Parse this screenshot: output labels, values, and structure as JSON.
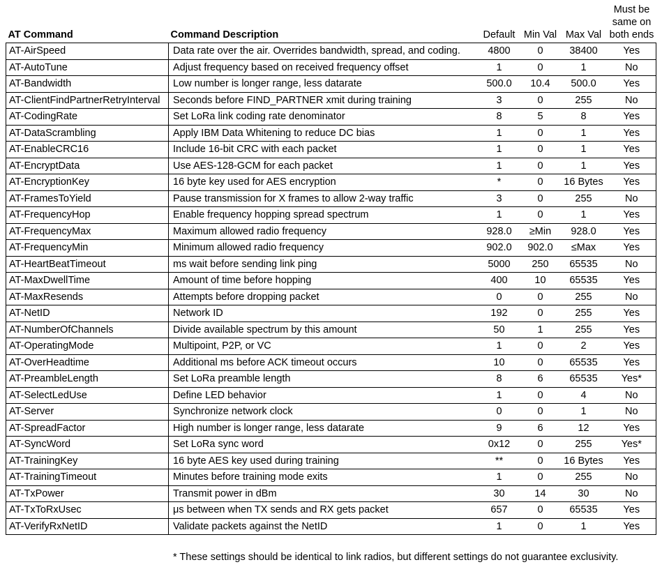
{
  "headers": {
    "command": "AT Command",
    "description": "Command Description",
    "default": "Default",
    "min": "Min Val",
    "max": "Max Val",
    "same_line1": "Must be",
    "same_line2": "same on",
    "same_line3": "both ends"
  },
  "rows": [
    {
      "cmd": "AT-AirSpeed",
      "desc": "Data rate over the air. Overrides bandwidth, spread, and coding.",
      "def": "4800",
      "min": "0",
      "max": "38400",
      "same": "Yes"
    },
    {
      "cmd": "AT-AutoTune",
      "desc": "Adjust frequency based on received frequency offset",
      "def": "1",
      "min": "0",
      "max": "1",
      "same": "No"
    },
    {
      "cmd": "AT-Bandwidth",
      "desc": "Low number is longer range, less datarate",
      "def": "500.0",
      "min": "10.4",
      "max": "500.0",
      "same": "Yes"
    },
    {
      "cmd": "AT-ClientFindPartnerRetryInterval",
      "desc": "Seconds before FIND_PARTNER xmit during training",
      "def": "3",
      "min": "0",
      "max": "255",
      "same": "No"
    },
    {
      "cmd": "AT-CodingRate",
      "desc": "Set LoRa link coding rate denominator",
      "def": "8",
      "min": "5",
      "max": "8",
      "same": "Yes"
    },
    {
      "cmd": "AT-DataScrambling",
      "desc": "Apply IBM Data Whitening to reduce DC bias",
      "def": "1",
      "min": "0",
      "max": "1",
      "same": "Yes"
    },
    {
      "cmd": "AT-EnableCRC16",
      "desc": "Include 16-bit CRC with each packet",
      "def": "1",
      "min": "0",
      "max": "1",
      "same": "Yes"
    },
    {
      "cmd": "AT-EncryptData",
      "desc": "Use AES-128-GCM for each packet",
      "def": "1",
      "min": "0",
      "max": "1",
      "same": "Yes"
    },
    {
      "cmd": "AT-EncryptionKey",
      "desc": "16 byte key used for AES encryption",
      "def": "*",
      "min": "0",
      "max": "16 Bytes",
      "same": "Yes"
    },
    {
      "cmd": "AT-FramesToYield",
      "desc": "Pause transmission for X frames to allow 2-way traffic",
      "def": "3",
      "min": "0",
      "max": "255",
      "same": "No"
    },
    {
      "cmd": "AT-FrequencyHop",
      "desc": "Enable frequency hopping spread spectrum",
      "def": "1",
      "min": "0",
      "max": "1",
      "same": "Yes"
    },
    {
      "cmd": "AT-FrequencyMax",
      "desc": "Maximum allowed radio frequency",
      "def": "928.0",
      "min": "≥Min",
      "max": "928.0",
      "same": "Yes"
    },
    {
      "cmd": "AT-FrequencyMin",
      "desc": "Minimum allowed radio frequency",
      "def": "902.0",
      "min": "902.0",
      "max": "≤Max",
      "same": "Yes"
    },
    {
      "cmd": "AT-HeartBeatTimeout",
      "desc": "ms wait before sending link ping",
      "def": "5000",
      "min": "250",
      "max": "65535",
      "same": "No"
    },
    {
      "cmd": "AT-MaxDwellTime",
      "desc": "Amount of time before hopping",
      "def": "400",
      "min": "10",
      "max": "65535",
      "same": "Yes"
    },
    {
      "cmd": "AT-MaxResends",
      "desc": "Attempts before dropping packet",
      "def": "0",
      "min": "0",
      "max": "255",
      "same": "No"
    },
    {
      "cmd": "AT-NetID",
      "desc": "Network ID",
      "def": "192",
      "min": "0",
      "max": "255",
      "same": "Yes"
    },
    {
      "cmd": "AT-NumberOfChannels",
      "desc": "Divide available spectrum by this amount",
      "def": "50",
      "min": "1",
      "max": "255",
      "same": "Yes"
    },
    {
      "cmd": "AT-OperatingMode",
      "desc": "Multipoint, P2P, or VC",
      "def": "1",
      "min": "0",
      "max": "2",
      "same": "Yes"
    },
    {
      "cmd": "AT-OverHeadtime",
      "desc": "Additional ms before ACK timeout occurs",
      "def": "10",
      "min": "0",
      "max": "65535",
      "same": "Yes"
    },
    {
      "cmd": "AT-PreambleLength",
      "desc": "Set LoRa preamble length",
      "def": "8",
      "min": "6",
      "max": "65535",
      "same": "Yes*"
    },
    {
      "cmd": "AT-SelectLedUse",
      "desc": "Define LED behavior",
      "def": "1",
      "min": "0",
      "max": "4",
      "same": "No"
    },
    {
      "cmd": "AT-Server",
      "desc": "Synchronize network clock",
      "def": "0",
      "min": "0",
      "max": "1",
      "same": "No"
    },
    {
      "cmd": "AT-SpreadFactor",
      "desc": "High number is longer range, less datarate",
      "def": "9",
      "min": "6",
      "max": "12",
      "same": "Yes"
    },
    {
      "cmd": "AT-SyncWord",
      "desc": "Set LoRa sync word",
      "def": "0x12",
      "min": "0",
      "max": "255",
      "same": "Yes*"
    },
    {
      "cmd": "AT-TrainingKey",
      "desc": "16 byte AES key used during training",
      "def": "**",
      "min": "0",
      "max": "16 Bytes",
      "same": "Yes"
    },
    {
      "cmd": "AT-TrainingTimeout",
      "desc": "Minutes before training mode exits",
      "def": "1",
      "min": "0",
      "max": "255",
      "same": "No"
    },
    {
      "cmd": "AT-TxPower",
      "desc": "Transmit power in dBm",
      "def": "30",
      "min": "14",
      "max": "30",
      "same": "No"
    },
    {
      "cmd": "AT-TxToRxUsec",
      "desc": "μs between when TX sends and RX gets packet",
      "def": "657",
      "min": "0",
      "max": "65535",
      "same": "Yes"
    },
    {
      "cmd": "AT-VerifyRxNetID",
      "desc": "Validate packets against the NetID",
      "def": "1",
      "min": "0",
      "max": "1",
      "same": "Yes"
    }
  ],
  "footnote": "* These settings should be identical to link radios, but different settings do not guarantee exclusivity."
}
